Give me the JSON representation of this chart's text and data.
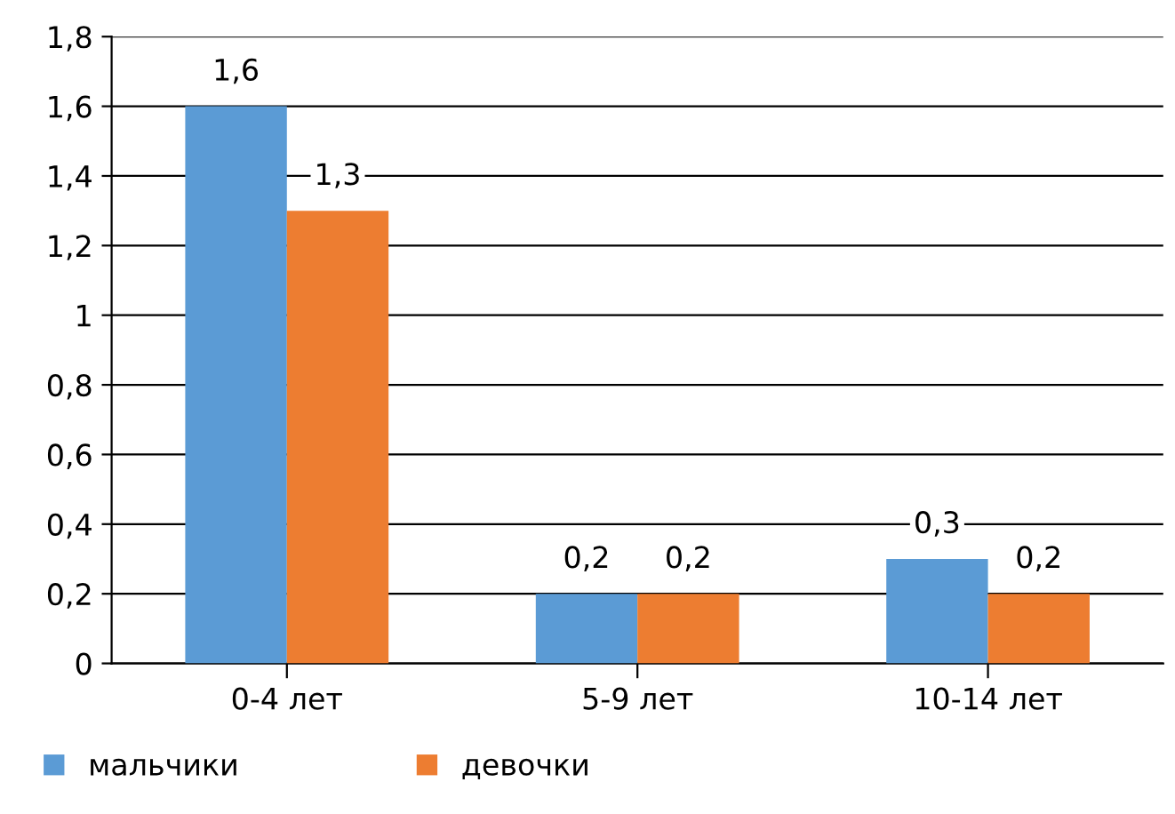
{
  "chart_data": {
    "type": "bar",
    "categories": [
      "0-4 лет",
      "5-9 лет",
      "10-14 лет"
    ],
    "series": [
      {
        "name": "мальчики",
        "color": "#5b9bd5",
        "values": [
          1.6,
          0.2,
          0.3
        ],
        "value_labels": [
          "1,6",
          "0,2",
          "0,3"
        ]
      },
      {
        "name": "девочки",
        "color": "#ed7d31",
        "values": [
          1.3,
          0.2,
          0.2
        ],
        "value_labels": [
          "1,3",
          "0,2",
          "0,2"
        ]
      }
    ],
    "ylim": [
      0,
      1.8
    ],
    "yticks": [
      0,
      {
        "value": 0.2,
        "label": "0,2"
      },
      {
        "value": 0.4,
        "label": "0,4"
      },
      {
        "value": 0.6,
        "label": "0,6"
      },
      {
        "value": 0.8,
        "label": "0,8"
      },
      1,
      {
        "value": 1.2,
        "label": "1,2"
      },
      {
        "value": 1.4,
        "label": "1,4"
      },
      {
        "value": 1.6,
        "label": "1,6"
      },
      {
        "value": 1.8,
        "label": "1,8"
      }
    ],
    "grid": "y",
    "legend": "bottom left"
  }
}
